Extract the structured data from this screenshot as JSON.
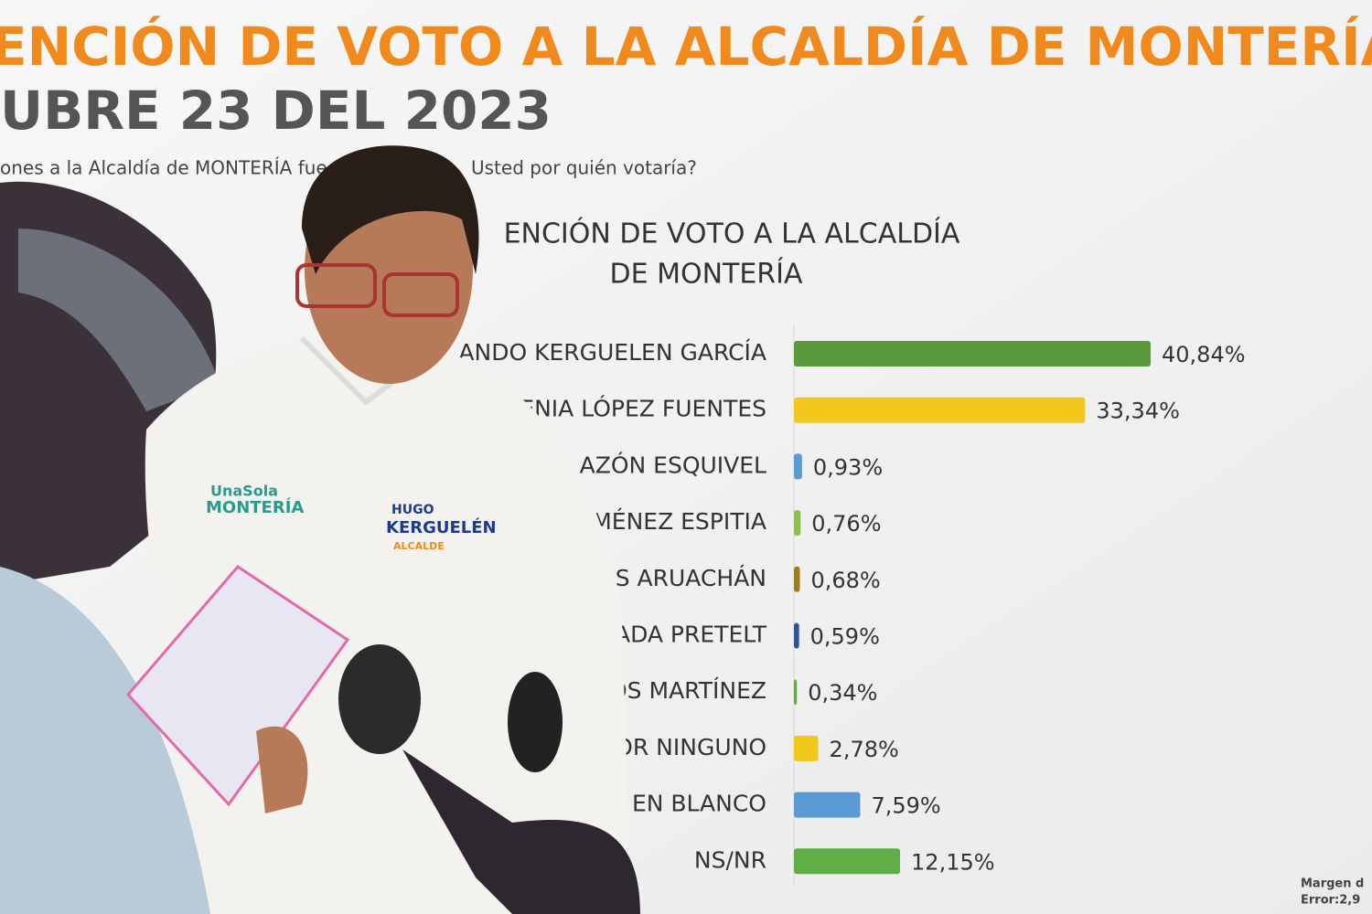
{
  "header": {
    "title": "ENCIÓN DE VOTO A LA ALCALDÍA DE MONTERÍA",
    "date": "UBRE 23 DEL 2023",
    "question": [
      "ones a la  Alcaldía de MONTERÍA fue",
      "Usted por quién votaría?"
    ]
  },
  "chart_data": {
    "type": "bar",
    "orientation": "horizontal",
    "title": [
      "ENCIÓN DE VOTO A LA ALCALDÍA",
      "DE MONTERÍA"
    ],
    "categories": [
      "ANDO KERGUELEN GARCÍA",
      "ENIA LÓPEZ FUENTES",
      "AZÓN ESQUIVEL",
      "MÉNEZ ESPITIA",
      "S ARUACHÁN",
      "ADA PRETELT",
      "OS MARTÍNEZ",
      "OR NINGUNO",
      "EN BLANCO",
      "NS/NR"
    ],
    "values": [
      40.84,
      33.34,
      0.93,
      0.76,
      0.68,
      0.59,
      0.34,
      2.78,
      7.59,
      12.15
    ],
    "value_labels": [
      "40,84%",
      "33,34%",
      "0,93%",
      "0,76%",
      "0,68%",
      "0,59%",
      "0,34%",
      "2,78%",
      "7,59%",
      "12,15%"
    ],
    "colors": [
      "#5b9a3c",
      "#f2c81c",
      "#5b9bd5",
      "#8cc152",
      "#9c7d1e",
      "#2f5597",
      "#6aa84f",
      "#f2c81c",
      "#5b9bd5",
      "#5fae47"
    ]
  },
  "footnote": [
    "Margen d",
    "Error:2,9"
  ],
  "photo": {
    "logo": [
      "UnaSola",
      "MONTERÍA"
    ],
    "badge": [
      "HUGO",
      "KERGUELÉN",
      "ALCALDE"
    ]
  }
}
